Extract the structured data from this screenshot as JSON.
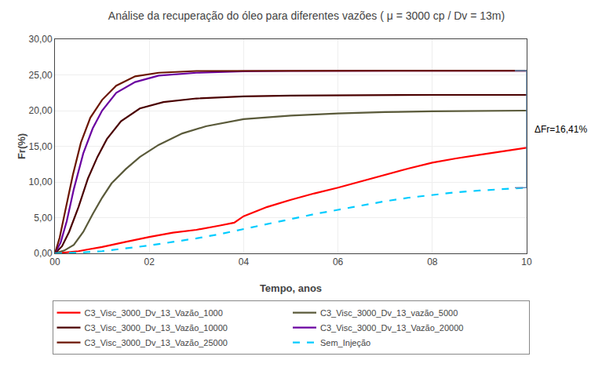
{
  "chart_data": {
    "type": "line",
    "title": "Análise da recuperação do óleo para diferentes vazões ( μ = 3000 cp / Dv = 13m)",
    "x_label": "Tempo, anos",
    "y_label": "Fr(%)",
    "xlim": [
      0,
      10
    ],
    "ylim": [
      0,
      30
    ],
    "xticks": [
      {
        "value": 0,
        "label": "00"
      },
      {
        "value": 2,
        "label": "02"
      },
      {
        "value": 4,
        "label": "04"
      },
      {
        "value": 6,
        "label": "06"
      },
      {
        "value": 8,
        "label": "08"
      },
      {
        "value": 10,
        "label": "10"
      }
    ],
    "yticks": [
      {
        "value": 0,
        "label": "0,00"
      },
      {
        "value": 5,
        "label": "5,00"
      },
      {
        "value": 10,
        "label": "10,00"
      },
      {
        "value": 15,
        "label": "15,00"
      },
      {
        "value": 20,
        "label": "20,00"
      },
      {
        "value": 25,
        "label": "25,00"
      },
      {
        "value": 30,
        "label": "30,00"
      }
    ],
    "grid": true,
    "legend": "bottom",
    "series": [
      {
        "name": "C3_Visc_3000_Dv_13_Vazão_1000",
        "color": "#ff0000",
        "line_style": "solid",
        "x": [
          0,
          0.3,
          0.5,
          0.7,
          1.0,
          1.5,
          2.0,
          2.5,
          3.0,
          3.5,
          3.8,
          4.0,
          4.5,
          5.0,
          5.5,
          6.0,
          6.5,
          7.0,
          7.5,
          8.0,
          8.5,
          9.0,
          9.5,
          10.0
        ],
        "values": [
          0,
          0.15,
          0.3,
          0.55,
          0.9,
          1.6,
          2.3,
          2.9,
          3.3,
          3.9,
          4.3,
          5.2,
          6.5,
          7.5,
          8.4,
          9.2,
          10.1,
          11.0,
          11.9,
          12.7,
          13.3,
          13.8,
          14.3,
          14.8
        ]
      },
      {
        "name": "C3_Visc_3000_Dv_13_vazão_5000",
        "color": "#5a5a3a",
        "line_style": "solid",
        "x": [
          0,
          0.2,
          0.4,
          0.6,
          0.8,
          1.0,
          1.2,
          1.5,
          1.8,
          2.2,
          2.7,
          3.2,
          4.0,
          5.0,
          6.0,
          7.0,
          8.0,
          9.0,
          10.0
        ],
        "values": [
          0,
          0.4,
          1.2,
          3.0,
          5.5,
          7.8,
          9.8,
          11.8,
          13.5,
          15.2,
          16.8,
          17.8,
          18.8,
          19.3,
          19.6,
          19.8,
          19.9,
          19.95,
          20.0
        ]
      },
      {
        "name": "C3_Visc_3000_Dv_13_Vazão_10000",
        "color": "#4a0000",
        "line_style": "solid",
        "x": [
          0,
          0.15,
          0.3,
          0.5,
          0.7,
          0.9,
          1.1,
          1.4,
          1.8,
          2.3,
          3.0,
          4.0,
          5.0,
          6.0,
          7.0,
          8.0,
          9.0,
          10.0
        ],
        "values": [
          0,
          1.0,
          3.0,
          6.5,
          10.5,
          13.5,
          16.0,
          18.5,
          20.3,
          21.2,
          21.7,
          22.0,
          22.1,
          22.15,
          22.2,
          22.2,
          22.2,
          22.2
        ]
      },
      {
        "name": "C3_Visc_3000_Dv_13_Vazão_20000",
        "color": "#6a00a0",
        "line_style": "solid",
        "x": [
          0,
          0.12,
          0.25,
          0.4,
          0.6,
          0.8,
          1.0,
          1.3,
          1.7,
          2.2,
          3.0,
          4.0,
          5.0,
          6.0,
          7.0,
          8.0,
          9.0,
          10.0
        ],
        "values": [
          0,
          1.5,
          4.5,
          9.0,
          14.0,
          17.5,
          20.0,
          22.5,
          24.0,
          24.9,
          25.3,
          25.5,
          25.55,
          25.58,
          25.59,
          25.59,
          25.6,
          25.6
        ]
      },
      {
        "name": "C3_Visc_3000_Dv_13_Vazão_25000",
        "color": "#6b1500",
        "line_style": "solid",
        "x": [
          0,
          0.1,
          0.22,
          0.38,
          0.55,
          0.75,
          1.0,
          1.3,
          1.7,
          2.2,
          3.0,
          4.0,
          5.0,
          6.0,
          7.0,
          8.0,
          9.0,
          10.0
        ],
        "values": [
          0,
          2.2,
          6.0,
          11.0,
          15.5,
          19.0,
          21.5,
          23.5,
          24.8,
          25.3,
          25.55,
          25.58,
          25.59,
          25.6,
          25.6,
          25.6,
          25.6,
          25.6
        ]
      },
      {
        "name": "Sem_Injeção",
        "color": "#00ccff",
        "line_style": "dashed",
        "x": [
          0,
          0.5,
          1.0,
          1.5,
          2.0,
          2.5,
          3.0,
          3.5,
          4.0,
          4.5,
          5.0,
          5.5,
          6.0,
          6.5,
          7.0,
          7.5,
          8.0,
          8.5,
          9.0,
          9.5,
          10.0
        ],
        "values": [
          0,
          0.1,
          0.3,
          0.7,
          1.1,
          1.6,
          2.1,
          2.7,
          3.4,
          4.1,
          4.8,
          5.5,
          6.1,
          6.7,
          7.3,
          7.8,
          8.2,
          8.55,
          8.8,
          9.0,
          9.2
        ]
      }
    ],
    "annotations": [
      {
        "text": "ΔFr=16,41%",
        "x": 10.0,
        "y_top": 25.6,
        "y_bottom": 9.2,
        "color": "#6090c0"
      }
    ]
  }
}
